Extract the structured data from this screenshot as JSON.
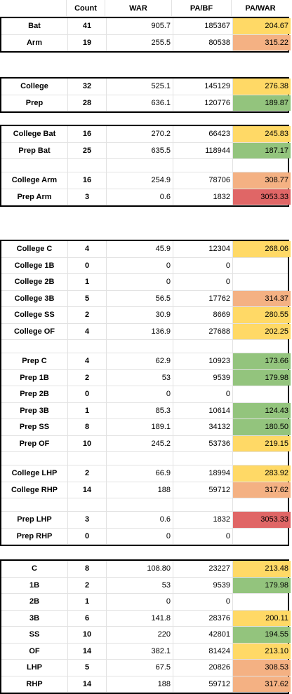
{
  "header": {
    "count": "Count",
    "war": "WAR",
    "pa_bf": "PA/BF",
    "pa_war": "PA/WAR"
  },
  "groups": [
    {
      "rows": [
        {
          "label": "Bat",
          "count": 41,
          "war": 905.7,
          "pa_bf": 185367,
          "pa_war": 204.67,
          "color": "#ffd966"
        },
        {
          "label": "Arm",
          "count": 19,
          "war": 255.5,
          "pa_bf": 80538,
          "pa_war": 315.22,
          "color": "#f4b183"
        }
      ]
    },
    {
      "rows": [
        {
          "label": "College",
          "count": 32,
          "war": 525.1,
          "pa_bf": 145129,
          "pa_war": 276.38,
          "color": "#ffd966"
        },
        {
          "label": "Prep",
          "count": 28,
          "war": 636.1,
          "pa_bf": 120776,
          "pa_war": 189.87,
          "color": "#93c47d"
        }
      ]
    },
    {
      "rows": [
        {
          "label": "College Bat",
          "count": 16,
          "war": 270.2,
          "pa_bf": 66423,
          "pa_war": 245.83,
          "color": "#ffd966"
        },
        {
          "label": "Prep Bat",
          "count": 25,
          "war": 635.5,
          "pa_bf": 118944,
          "pa_war": 187.17,
          "color": "#93c47d"
        },
        null,
        {
          "label": "College Arm",
          "count": 16,
          "war": 254.9,
          "pa_bf": 78706,
          "pa_war": 308.77,
          "color": "#f4b183"
        },
        {
          "label": "Prep Arm",
          "count": 3,
          "war": 0.6,
          "pa_bf": 1832,
          "pa_war": 3053.33,
          "color": "#e06666"
        }
      ]
    },
    {
      "rows": [
        {
          "label": "College C",
          "count": 4,
          "war": 45.9,
          "pa_bf": 12304,
          "pa_war": 268.06,
          "color": "#ffd966"
        },
        {
          "label": "College 1B",
          "count": 0,
          "war": 0,
          "pa_bf": 0
        },
        {
          "label": "College 2B",
          "count": 1,
          "war": 0,
          "pa_bf": 0
        },
        {
          "label": "College 3B",
          "count": 5,
          "war": 56.5,
          "pa_bf": 17762,
          "pa_war": 314.37,
          "color": "#f4b183"
        },
        {
          "label": "College SS",
          "count": 2,
          "war": 30.9,
          "pa_bf": 8669,
          "pa_war": 280.55,
          "color": "#ffd966"
        },
        {
          "label": "College OF",
          "count": 4,
          "war": 136.9,
          "pa_bf": 27688,
          "pa_war": 202.25,
          "color": "#ffd966"
        },
        null,
        {
          "label": "Prep C",
          "count": 4,
          "war": 62.9,
          "pa_bf": 10923,
          "pa_war": 173.66,
          "color": "#93c47d"
        },
        {
          "label": "Prep 1B",
          "count": 2,
          "war": 53,
          "pa_bf": 9539,
          "pa_war": 179.98,
          "color": "#93c47d"
        },
        {
          "label": "Prep 2B",
          "count": 0,
          "war": 0,
          "pa_bf": 0
        },
        {
          "label": "Prep 3B",
          "count": 1,
          "war": 85.3,
          "pa_bf": 10614,
          "pa_war": 124.43,
          "color": "#93c47d"
        },
        {
          "label": "Prep SS",
          "count": 8,
          "war": 189.1,
          "pa_bf": 34132,
          "pa_war": "180.50",
          "color": "#93c47d"
        },
        {
          "label": "Prep OF",
          "count": 10,
          "war": 245.2,
          "pa_bf": 53736,
          "pa_war": 219.15,
          "color": "#ffd966"
        },
        null,
        {
          "label": "College LHP",
          "count": 2,
          "war": 66.9,
          "pa_bf": 18994,
          "pa_war": 283.92,
          "color": "#ffd966"
        },
        {
          "label": "College RHP",
          "count": 14,
          "war": 188,
          "pa_bf": 59712,
          "pa_war": 317.62,
          "color": "#f4b183"
        },
        null,
        {
          "label": "Prep LHP",
          "count": 3,
          "war": 0.6,
          "pa_bf": 1832,
          "pa_war": 3053.33,
          "color": "#e06666"
        },
        {
          "label": "Prep RHP",
          "count": 0,
          "war": 0,
          "pa_bf": 0
        }
      ]
    },
    {
      "rows": [
        {
          "label": "C",
          "count": 8,
          "war": "108.80",
          "pa_bf": 23227,
          "pa_war": 213.48,
          "color": "#ffd966"
        },
        {
          "label": "1B",
          "count": 2,
          "war": 53,
          "pa_bf": 9539,
          "pa_war": 179.98,
          "color": "#93c47d"
        },
        {
          "label": "2B",
          "count": 1,
          "war": 0,
          "pa_bf": 0
        },
        {
          "label": "3B",
          "count": 6,
          "war": 141.8,
          "pa_bf": 28376,
          "pa_war": 200.11,
          "color": "#ffd966"
        },
        {
          "label": "SS",
          "count": 10,
          "war": 220,
          "pa_bf": 42801,
          "pa_war": 194.55,
          "color": "#93c47d"
        },
        {
          "label": "OF",
          "count": 14,
          "war": 382.1,
          "pa_bf": 81424,
          "pa_war": "213.10",
          "color": "#ffd966"
        },
        {
          "label": "LHP",
          "count": 5,
          "war": 67.5,
          "pa_bf": 20826,
          "pa_war": 308.53,
          "color": "#f4b183"
        },
        {
          "label": "RHP",
          "count": 14,
          "war": 188,
          "pa_bf": 59712,
          "pa_war": 317.62,
          "color": "#f4b183"
        }
      ]
    }
  ]
}
